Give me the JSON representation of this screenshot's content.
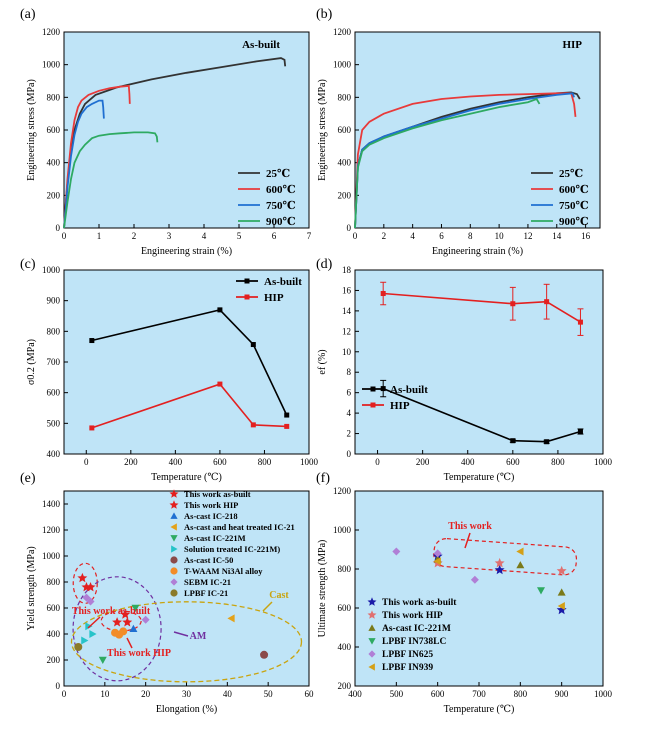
{
  "figure": {
    "panels": [
      {
        "id": "a",
        "letter": "(a)",
        "inset_label": "As-built"
      },
      {
        "id": "b",
        "letter": "(b)",
        "inset_label": "HIP"
      },
      {
        "id": "c",
        "letter": "(c)"
      },
      {
        "id": "d",
        "letter": "(d)"
      },
      {
        "id": "e",
        "letter": "(e)",
        "annotations": [
          {
            "text": "This work as-built",
            "color": "#e32020"
          },
          {
            "text": "This work HIP",
            "color": "#e32020"
          },
          {
            "text": "AM",
            "color": "#7030a0"
          },
          {
            "text": "Cast",
            "color": "#c9a40f"
          }
        ]
      },
      {
        "id": "f",
        "letter": "(f)",
        "annotations": [
          {
            "text": "This work",
            "color": "#e32020"
          }
        ]
      }
    ]
  },
  "chart_data": [
    {
      "id": "a",
      "type": "line",
      "title": "",
      "xlabel": "Engineering strain (%)",
      "ylabel": "Engineering stress (MPa)",
      "xlim": [
        0,
        7
      ],
      "ylim": [
        0,
        1200
      ],
      "xticks": [
        0,
        1,
        2,
        3,
        4,
        5,
        6,
        7
      ],
      "yticks": [
        0,
        200,
        400,
        600,
        800,
        1000,
        1200
      ],
      "legend": "bottom-right",
      "background": "#bfe4f7",
      "series": [
        {
          "name": "25℃",
          "color": "#333333",
          "x": [
            0,
            0.1,
            0.2,
            0.3,
            0.45,
            0.6,
            0.9,
            1.5,
            2.5,
            3.5,
            4.5,
            5.5,
            6.2,
            6.3,
            6.32
          ],
          "y": [
            0,
            280,
            470,
            600,
            700,
            760,
            815,
            860,
            910,
            950,
            985,
            1020,
            1040,
            1030,
            990
          ]
        },
        {
          "name": "600℃",
          "color": "#e83a3a",
          "x": [
            0,
            0.1,
            0.2,
            0.3,
            0.4,
            0.5,
            0.7,
            1.0,
            1.3,
            1.6,
            1.85,
            1.87,
            1.88
          ],
          "y": [
            0,
            300,
            520,
            660,
            740,
            780,
            815,
            840,
            855,
            865,
            870,
            820,
            760
          ]
        },
        {
          "name": "750℃",
          "color": "#1f6fd1",
          "x": [
            0,
            0.1,
            0.2,
            0.3,
            0.4,
            0.5,
            0.65,
            0.8,
            1.0,
            1.1,
            1.12,
            1.14
          ],
          "y": [
            0,
            250,
            440,
            570,
            650,
            700,
            740,
            760,
            780,
            780,
            740,
            670
          ]
        },
        {
          "name": "900℃",
          "color": "#2eaa62",
          "x": [
            0,
            0.1,
            0.2,
            0.3,
            0.45,
            0.6,
            0.8,
            1.0,
            1.3,
            1.6,
            2.0,
            2.4,
            2.6,
            2.65,
            2.67
          ],
          "y": [
            0,
            160,
            300,
            400,
            470,
            510,
            550,
            565,
            575,
            580,
            585,
            585,
            580,
            560,
            525
          ]
        }
      ]
    },
    {
      "id": "b",
      "type": "line",
      "title": "",
      "xlabel": "Engineering strain (%)",
      "ylabel": "Engineering stress (MPa)",
      "xlim": [
        0,
        17
      ],
      "ylim": [
        0,
        1200
      ],
      "xticks": [
        0,
        2,
        4,
        6,
        8,
        10,
        12,
        14,
        16
      ],
      "yticks": [
        0,
        200,
        400,
        600,
        800,
        1000,
        1200
      ],
      "legend": "bottom-right",
      "background": "#bfe4f7",
      "series": [
        {
          "name": "25℃",
          "color": "#333333",
          "x": [
            0,
            0.2,
            0.5,
            1,
            2,
            4,
            6,
            8,
            10,
            12,
            14,
            15,
            15.4,
            15.6
          ],
          "y": [
            0,
            380,
            480,
            520,
            560,
            620,
            680,
            730,
            770,
            800,
            825,
            830,
            820,
            790
          ]
        },
        {
          "name": "600℃",
          "color": "#e83a3a",
          "x": [
            0,
            0.2,
            0.5,
            1,
            2,
            4,
            6,
            8,
            10,
            12,
            14,
            15,
            15.2,
            15.3
          ],
          "y": [
            0,
            450,
            600,
            650,
            700,
            760,
            790,
            805,
            815,
            820,
            825,
            825,
            760,
            680
          ]
        },
        {
          "name": "750℃",
          "color": "#1f6fd1",
          "x": [
            0,
            0.2,
            0.5,
            1,
            2,
            4,
            6,
            8,
            10,
            12,
            14,
            15.1,
            15.2
          ],
          "y": [
            0,
            380,
            480,
            520,
            560,
            620,
            670,
            720,
            760,
            790,
            815,
            825,
            800
          ]
        },
        {
          "name": "900℃",
          "color": "#2eaa62",
          "x": [
            0,
            0.2,
            0.5,
            1,
            2,
            4,
            6,
            8,
            10,
            12,
            12.6,
            12.8
          ],
          "y": [
            0,
            370,
            470,
            510,
            550,
            610,
            660,
            700,
            740,
            770,
            790,
            760
          ]
        }
      ]
    },
    {
      "id": "c",
      "type": "line",
      "title": "",
      "xlabel": "Temperature (℃)",
      "ylabel": "σ0.2 (MPa)",
      "xlim": [
        -100,
        1000
      ],
      "ylim": [
        400,
        1000
      ],
      "xticks": [
        0,
        200,
        400,
        600,
        800,
        1000
      ],
      "yticks": [
        400,
        500,
        600,
        700,
        800,
        900,
        1000
      ],
      "legend": "top-right",
      "background": "#bfe4f7",
      "series": [
        {
          "name": "As-built",
          "color": "#000000",
          "x": [
            25,
            600,
            750,
            900
          ],
          "y": [
            770,
            870,
            757,
            527
          ]
        },
        {
          "name": "HIP",
          "color": "#e32020",
          "x": [
            25,
            600,
            750,
            900
          ],
          "y": [
            485,
            628,
            495,
            490
          ]
        }
      ]
    },
    {
      "id": "d",
      "type": "line",
      "title": "",
      "xlabel": "Temperature (℃)",
      "ylabel": "ef (%)",
      "xlim": [
        -100,
        1000
      ],
      "ylim": [
        0,
        18
      ],
      "xticks": [
        0,
        200,
        400,
        600,
        800,
        1000
      ],
      "yticks": [
        0,
        2,
        4,
        6,
        8,
        10,
        12,
        14,
        16,
        18
      ],
      "legend": "middle-left",
      "background": "#bfe4f7",
      "series": [
        {
          "name": "As-built",
          "color": "#000000",
          "x": [
            25,
            600,
            750,
            900
          ],
          "y": [
            6.4,
            1.3,
            1.2,
            2.2
          ],
          "err": [
            0.8,
            0.15,
            0.15,
            0.25
          ]
        },
        {
          "name": "HIP",
          "color": "#e32020",
          "x": [
            25,
            600,
            750,
            900
          ],
          "y": [
            15.7,
            14.7,
            14.9,
            12.9
          ],
          "err": [
            1.1,
            1.6,
            1.7,
            1.3
          ]
        }
      ]
    },
    {
      "id": "e",
      "type": "scatter",
      "title": "",
      "xlabel": "Elongation (%)",
      "ylabel": "Yield strength (MPa)",
      "xlim": [
        0,
        60
      ],
      "ylim": [
        0,
        1500
      ],
      "xticks": [
        0,
        10,
        20,
        30,
        40,
        50,
        60
      ],
      "yticks": [
        0,
        200,
        400,
        600,
        800,
        1000,
        1200,
        1400
      ],
      "legend": "top-right",
      "background": "#bfe4f7",
      "series": [
        {
          "name": "This work as-built",
          "color": "#e32020",
          "marker": "star",
          "x": [
            4.5,
            5.5,
            6.5
          ],
          "y": [
            830,
            760,
            760
          ]
        },
        {
          "name": "This work HIP",
          "color": "#e32020",
          "marker": "star",
          "x": [
            13,
            15,
            15.5
          ],
          "y": [
            490,
            550,
            490
          ]
        },
        {
          "name": "As-cast IC-218",
          "color": "#1f6fd1",
          "marker": "triangle-up",
          "x": [
            17
          ],
          "y": [
            440
          ]
        },
        {
          "name": "As-cast and heat treated IC-21",
          "color": "#e3a21a",
          "marker": "triangle-left",
          "x": [
            41
          ],
          "y": [
            520
          ]
        },
        {
          "name": "As-cast IC-221M",
          "color": "#2eaa62",
          "marker": "triangle-down",
          "x": [
            9.5,
            17.5
          ],
          "y": [
            200,
            600
          ]
        },
        {
          "name": "Solution treated IC-221M)",
          "color": "#26c3c9",
          "marker": "triangle-right",
          "x": [
            5,
            6,
            7
          ],
          "y": [
            350,
            460,
            400
          ]
        },
        {
          "name": "As-cast IC-50",
          "color": "#8b4a4a",
          "marker": "circle",
          "x": [
            49
          ],
          "y": [
            240
          ]
        },
        {
          "name": "T-WAAM Ni3Al alloy",
          "color": "#f28c28",
          "marker": "circle",
          "x": [
            12.5,
            13.5,
            14.5
          ],
          "y": [
            410,
            395,
            420
          ]
        },
        {
          "name": "SEBM IC-21",
          "color": "#b07fd6",
          "marker": "diamond",
          "x": [
            5.5,
            6.5,
            20
          ],
          "y": [
            680,
            650,
            510
          ]
        },
        {
          "name": "LPBF IC-21",
          "color": "#8a7a2a",
          "marker": "circle",
          "x": [
            3.5
          ],
          "y": [
            300
          ]
        }
      ]
    },
    {
      "id": "f",
      "type": "scatter",
      "title": "",
      "xlabel": "Temperature (℃)",
      "ylabel": "Ultimate strength (MPa)",
      "xlim": [
        400,
        1000
      ],
      "ylim": [
        200,
        1200
      ],
      "xticks": [
        400,
        500,
        600,
        700,
        800,
        900,
        1000
      ],
      "yticks": [
        200,
        400,
        600,
        800,
        1000,
        1200
      ],
      "legend": "bottom-left",
      "background": "#bfe4f7",
      "series": [
        {
          "name": "This work as-built",
          "color": "#1a1aa8",
          "marker": "star",
          "x": [
            600,
            750,
            900
          ],
          "y": [
            865,
            795,
            590
          ]
        },
        {
          "name": "This work HIP",
          "color": "#e07070",
          "marker": "star",
          "x": [
            600,
            750,
            900
          ],
          "y": [
            830,
            830,
            790
          ]
        },
        {
          "name": "As-cast IC-221M",
          "color": "#7a7a1a",
          "marker": "triangle-up",
          "x": [
            600,
            800,
            900
          ],
          "y": [
            850,
            820,
            680
          ]
        },
        {
          "name": "LPBF IN738LC",
          "color": "#2eaa62",
          "marker": "triangle-down",
          "x": [
            850
          ],
          "y": [
            690
          ]
        },
        {
          "name": "LPBF IN625",
          "color": "#b07fd6",
          "marker": "diamond",
          "x": [
            500,
            600,
            690
          ],
          "y": [
            890,
            880,
            745
          ]
        },
        {
          "name": "LPBF IN939",
          "color": "#d4a017",
          "marker": "triangle-left",
          "x": [
            600,
            800,
            900
          ],
          "y": [
            840,
            890,
            610
          ]
        }
      ]
    }
  ]
}
